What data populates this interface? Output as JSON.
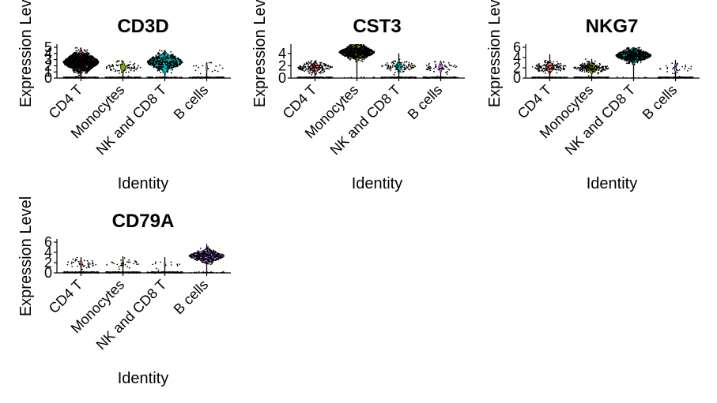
{
  "chart_data": [
    {
      "type": "violin",
      "title": "CD3D",
      "xlabel": "Identity",
      "ylabel": "Expression Level",
      "categories": [
        "CD4 T",
        "Monocytes",
        "NK and CD8 T",
        "B cells"
      ],
      "ylim": [
        0,
        5
      ],
      "yticks": [
        0,
        1,
        2,
        3,
        4,
        5
      ],
      "grid": false,
      "colors": [
        "#F8766D",
        "#7CAE00",
        "#00BFC4",
        "#C77CFF"
      ],
      "violins": [
        {
          "category": "CD4 T",
          "expressed_center": 2.6,
          "expressed_spread": 0.75,
          "max": 4.9,
          "zero_heavy": true,
          "points_expressed": 1200,
          "points_zero": 150
        },
        {
          "category": "Monocytes",
          "expressed_center": 1.8,
          "expressed_spread": 0.5,
          "max": 2.8,
          "zero_heavy": true,
          "points_expressed": 70,
          "points_zero": 140
        },
        {
          "category": "NK and CD8 T",
          "expressed_center": 2.6,
          "expressed_spread": 0.7,
          "max": 4.5,
          "zero_heavy": true,
          "points_expressed": 320,
          "points_zero": 80
        },
        {
          "category": "B cells",
          "expressed_center": 1.7,
          "expressed_spread": 0.5,
          "max": 2.5,
          "zero_heavy": true,
          "points_expressed": 18,
          "points_zero": 150
        }
      ]
    },
    {
      "type": "violin",
      "title": "CST3",
      "xlabel": "Identity",
      "ylabel": "Expression Level",
      "categories": [
        "CD4 T",
        "Monocytes",
        "NK and CD8 T",
        "B cells"
      ],
      "ylim": [
        0,
        5
      ],
      "yticks": [
        0,
        2,
        4
      ],
      "grid": false,
      "colors": [
        "#F8766D",
        "#7CAE00",
        "#00BFC4",
        "#C77CFF"
      ],
      "violins": [
        {
          "category": "CD4 T",
          "expressed_center": 1.7,
          "expressed_spread": 0.45,
          "max": 2.8,
          "zero_heavy": true,
          "points_expressed": 160,
          "points_zero": 150
        },
        {
          "category": "Monocytes",
          "expressed_center": 4.2,
          "expressed_spread": 0.55,
          "max": 5.4,
          "zero_heavy": false,
          "points_expressed": 650,
          "points_zero": 8
        },
        {
          "category": "NK and CD8 T",
          "expressed_center": 1.9,
          "expressed_spread": 0.45,
          "max": 4.0,
          "zero_heavy": true,
          "points_expressed": 90,
          "points_zero": 130
        },
        {
          "category": "B cells",
          "expressed_center": 1.8,
          "expressed_spread": 0.45,
          "max": 2.8,
          "zero_heavy": true,
          "points_expressed": 55,
          "points_zero": 130
        }
      ]
    },
    {
      "type": "violin",
      "title": "NKG7",
      "xlabel": "Identity",
      "ylabel": "Expression Level",
      "categories": [
        "CD4 T",
        "Monocytes",
        "NK and CD8 T",
        "B cells"
      ],
      "ylim": [
        0,
        6
      ],
      "yticks": [
        0,
        2,
        4,
        6
      ],
      "grid": false,
      "colors": [
        "#F8766D",
        "#7CAE00",
        "#00BFC4",
        "#C77CFF"
      ],
      "violins": [
        {
          "category": "CD4 T",
          "expressed_center": 2.1,
          "expressed_spread": 0.6,
          "max": 4.6,
          "zero_heavy": true,
          "points_expressed": 130,
          "points_zero": 150
        },
        {
          "category": "Monocytes",
          "expressed_center": 2.0,
          "expressed_spread": 0.5,
          "max": 3.7,
          "zero_heavy": true,
          "points_expressed": 190,
          "points_zero": 150
        },
        {
          "category": "NK and CD8 T",
          "expressed_center": 4.4,
          "expressed_spread": 0.65,
          "max": 5.9,
          "zero_heavy": false,
          "points_expressed": 520,
          "points_zero": 10
        },
        {
          "category": "B cells",
          "expressed_center": 2.0,
          "expressed_spread": 0.6,
          "max": 3.5,
          "zero_heavy": true,
          "points_expressed": 28,
          "points_zero": 150
        }
      ]
    },
    {
      "type": "violin",
      "title": "CD79A",
      "xlabel": "Identity",
      "ylabel": "Expression Level",
      "categories": [
        "CD4 T",
        "Monocytes",
        "NK and CD8 T",
        "B cells"
      ],
      "ylim": [
        0,
        6
      ],
      "yticks": [
        0,
        2,
        4,
        6
      ],
      "grid": false,
      "colors": [
        "#F8766D",
        "#7CAE00",
        "#00BFC4",
        "#C77CFF"
      ],
      "violins": [
        {
          "category": "CD4 T",
          "expressed_center": 1.8,
          "expressed_spread": 0.45,
          "max": 3.0,
          "zero_heavy": true,
          "points_expressed": 40,
          "points_zero": 150
        },
        {
          "category": "Monocytes",
          "expressed_center": 1.8,
          "expressed_spread": 0.5,
          "max": 3.2,
          "zero_heavy": true,
          "points_expressed": 28,
          "points_zero": 150
        },
        {
          "category": "NK and CD8 T",
          "expressed_center": 1.6,
          "expressed_spread": 0.5,
          "max": 3.0,
          "zero_heavy": true,
          "points_expressed": 12,
          "points_zero": 130
        },
        {
          "category": "B cells",
          "expressed_center": 3.3,
          "expressed_spread": 0.6,
          "max": 5.6,
          "zero_heavy": false,
          "points_expressed": 320,
          "points_zero": 20
        }
      ]
    }
  ]
}
